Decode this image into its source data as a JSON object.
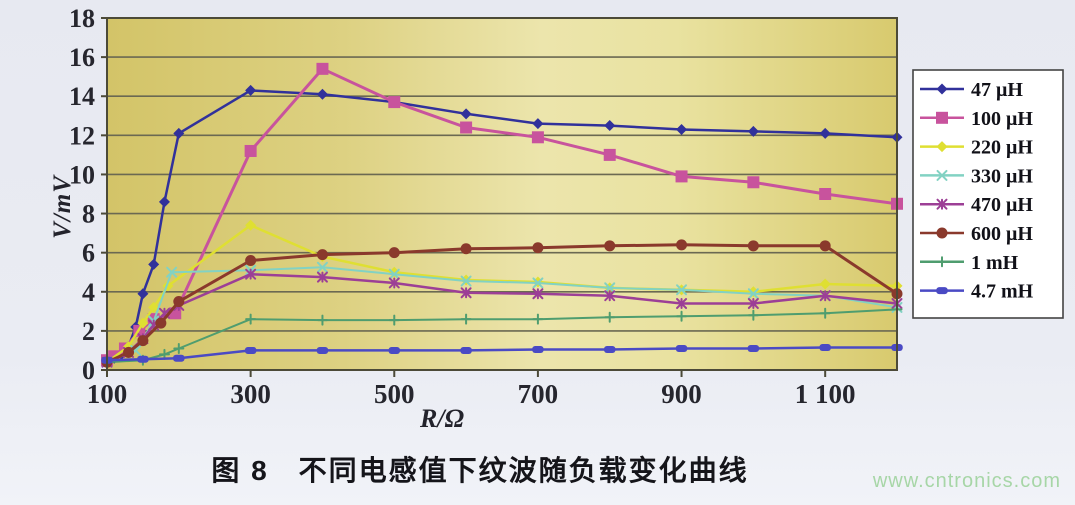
{
  "page": {
    "caption": "图 8　不同电感值下纹波随负载变化曲线",
    "watermark": "www.cntronics.com"
  },
  "colors": {
    "plot_bg_left": "#d3c468",
    "plot_bg_mid": "#ece5ac",
    "plot_bg_right": "#d8ca6e",
    "grid": "#6b6952",
    "axis": "#4c4a38",
    "tick_text": "#26262e",
    "legend_border": "#444444",
    "legend_bg": "#ffffff",
    "watermark": "#a7d6a7"
  },
  "chart_data": {
    "type": "line",
    "title": "",
    "xlabel": "R/Ω",
    "ylabel": "V/mV",
    "xlim": [
      100,
      1200
    ],
    "ylim": [
      0,
      18
    ],
    "grid": true,
    "legend_position": "right",
    "x_ticks": [
      100,
      300,
      500,
      700,
      900,
      1100
    ],
    "x_tick_labels": [
      "100",
      "300",
      "500",
      "700",
      "900",
      "1 100"
    ],
    "y_ticks": [
      0,
      2,
      4,
      6,
      8,
      10,
      12,
      14,
      16,
      18
    ],
    "y_tick_labels": [
      "0",
      "2",
      "4",
      "6",
      "8",
      "10",
      "12",
      "14",
      "16",
      "18"
    ],
    "series": [
      {
        "name": "47 μH",
        "color": "#31319b",
        "marker": "diamond",
        "marker_size": 5.5,
        "width": 2.5,
        "x": [
          100,
          110,
          120,
          130,
          140,
          150,
          165,
          180,
          200,
          300,
          400,
          500,
          600,
          700,
          800,
          900,
          1000,
          1100,
          1200
        ],
        "y": [
          0.5,
          0.6,
          0.8,
          1.2,
          2.2,
          3.9,
          5.4,
          8.6,
          12.1,
          14.3,
          14.1,
          13.7,
          13.1,
          12.6,
          12.5,
          12.3,
          12.2,
          12.1,
          11.9
        ]
      },
      {
        "name": "100 μH",
        "color": "#c8539d",
        "marker": "square",
        "marker_size": 6,
        "width": 3,
        "x": [
          100,
          110,
          125,
          145,
          165,
          195,
          300,
          400,
          500,
          600,
          700,
          800,
          900,
          1000,
          1100,
          1200
        ],
        "y": [
          0.5,
          0.7,
          1.1,
          2.0,
          2.6,
          2.9,
          11.2,
          15.4,
          13.7,
          12.4,
          11.9,
          11.0,
          9.9,
          9.6,
          9.0,
          8.5
        ]
      },
      {
        "name": "220 μH",
        "color": "#dfdf32",
        "marker": "diamond",
        "marker_size": 5.5,
        "width": 2.5,
        "x": [
          100,
          130,
          150,
          165,
          185,
          300,
          400,
          500,
          600,
          700,
          800,
          900,
          1000,
          1100,
          1200
        ],
        "y": [
          0.4,
          1.2,
          2.4,
          3.2,
          4.3,
          7.4,
          5.8,
          5.0,
          4.6,
          4.5,
          4.2,
          4.1,
          4.0,
          4.4,
          4.3
        ]
      },
      {
        "name": "330 μH",
        "color": "#82d2c3",
        "marker": "x",
        "marker_size": 4.5,
        "width": 2,
        "x": [
          100,
          140,
          165,
          190,
          300,
          400,
          500,
          600,
          700,
          800,
          900,
          1000,
          1100,
          1200
        ],
        "y": [
          0.4,
          1.0,
          2.5,
          5.0,
          5.1,
          5.25,
          4.9,
          4.55,
          4.45,
          4.2,
          4.1,
          3.9,
          3.8,
          3.2
        ]
      },
      {
        "name": "470 μH",
        "color": "#9c3f96",
        "marker": "star",
        "marker_size": 4.5,
        "width": 2.5,
        "x": [
          100,
          130,
          150,
          165,
          180,
          200,
          300,
          400,
          500,
          600,
          700,
          800,
          900,
          1000,
          1100,
          1200
        ],
        "y": [
          0.4,
          0.9,
          1.6,
          2.3,
          2.9,
          3.3,
          4.9,
          4.75,
          4.45,
          3.95,
          3.9,
          3.8,
          3.4,
          3.4,
          3.8,
          3.4
        ]
      },
      {
        "name": "600 μH",
        "color": "#8a392c",
        "marker": "circle",
        "marker_size": 5.5,
        "width": 3,
        "x": [
          100,
          130,
          150,
          175,
          200,
          300,
          400,
          500,
          600,
          700,
          800,
          900,
          1000,
          1100,
          1200
        ],
        "y": [
          0.4,
          0.9,
          1.5,
          2.4,
          3.5,
          5.6,
          5.9,
          6.0,
          6.2,
          6.25,
          6.35,
          6.4,
          6.35,
          6.35,
          3.9
        ]
      },
      {
        "name": "1 mH",
        "color": "#4f9d6f",
        "marker": "plus",
        "marker_size": 4.5,
        "width": 2,
        "x": [
          100,
          150,
          180,
          200,
          300,
          400,
          500,
          600,
          700,
          800,
          900,
          1000,
          1100,
          1200
        ],
        "y": [
          0.4,
          0.5,
          0.8,
          1.1,
          2.6,
          2.55,
          2.55,
          2.6,
          2.6,
          2.7,
          2.75,
          2.8,
          2.9,
          3.1
        ]
      },
      {
        "name": "4.7 mH",
        "color": "#4a4ac4",
        "marker": "dash",
        "marker_size": 5,
        "width": 2.5,
        "x": [
          100,
          150,
          200,
          300,
          400,
          500,
          600,
          700,
          800,
          900,
          1000,
          1100,
          1200
        ],
        "y": [
          0.5,
          0.55,
          0.6,
          1.0,
          1.0,
          1.0,
          1.0,
          1.05,
          1.05,
          1.1,
          1.1,
          1.15,
          1.15
        ]
      }
    ]
  }
}
